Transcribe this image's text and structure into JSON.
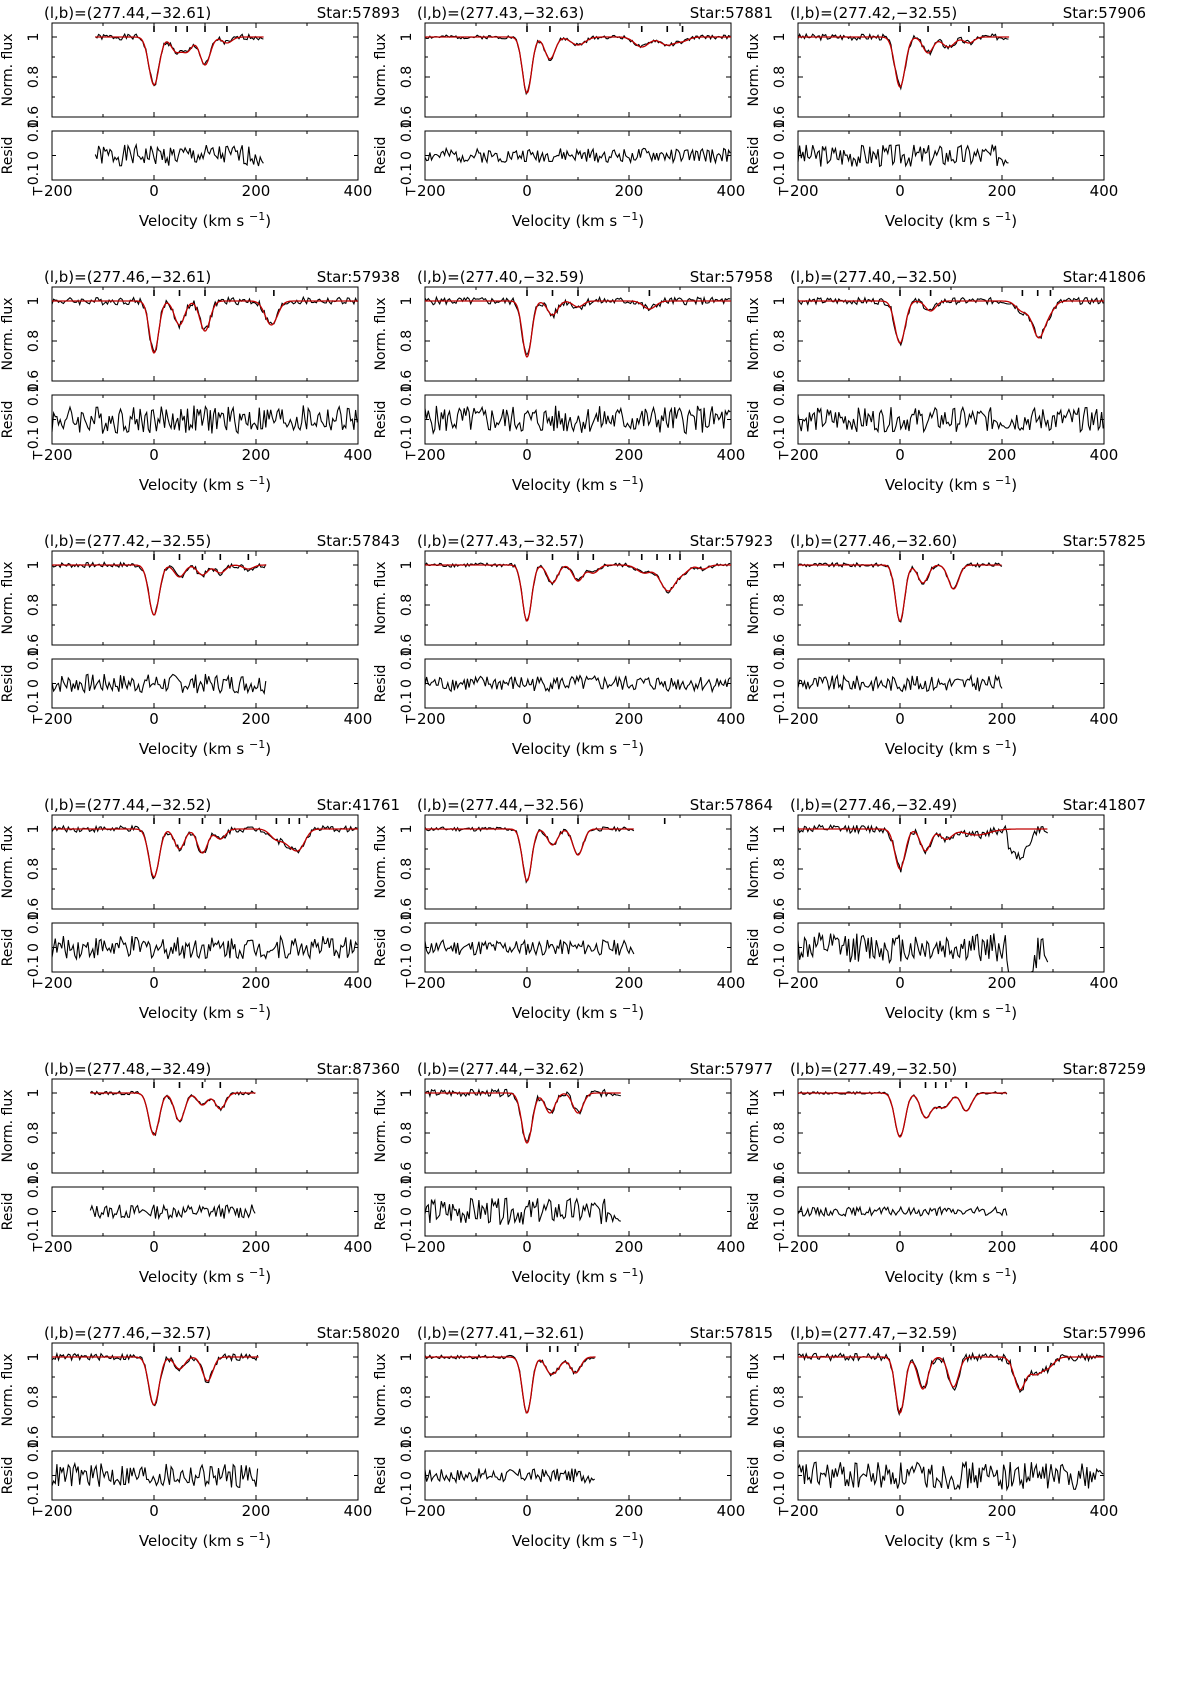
{
  "chart_data": [
    {
      "type": "line",
      "coord": "(l,b)=(277.44,−32.61)",
      "star": "Star:57893",
      "v_range": [
        -115,
        215
      ],
      "model_range": [
        -115,
        215
      ],
      "components": [
        0,
        43,
        65,
        100,
        143
      ],
      "lines": [
        {
          "v": 0,
          "d": 0.24,
          "w": 10
        },
        {
          "v": 43,
          "d": 0.07,
          "w": 10
        },
        {
          "v": 65,
          "d": 0.07,
          "w": 10
        },
        {
          "v": 100,
          "d": 0.14,
          "w": 10
        },
        {
          "v": 143,
          "d": 0.03,
          "w": 10
        }
      ],
      "noise": 0.012,
      "resid_noise": 0.012,
      "seed": 1
    },
    {
      "type": "line",
      "coord": "(l,b)=(277.43,−32.63)",
      "star": "Star:57881",
      "v_range": [
        -200,
        400
      ],
      "model_range": [
        -200,
        400
      ],
      "components": [
        0,
        45,
        100,
        225,
        275,
        305
      ],
      "lines": [
        {
          "v": 0,
          "d": 0.28,
          "w": 9
        },
        {
          "v": 45,
          "d": 0.11,
          "w": 10
        },
        {
          "v": 100,
          "d": 0.04,
          "w": 14
        },
        {
          "v": 225,
          "d": 0.05,
          "w": 14
        },
        {
          "v": 275,
          "d": 0.04,
          "w": 14
        },
        {
          "v": 305,
          "d": 0.02,
          "w": 12
        }
      ],
      "noise": 0.008,
      "resid_noise": 0.008,
      "seed": 2
    },
    {
      "type": "line",
      "coord": "(l,b)=(277.42,−32.55)",
      "star": "Star:57906",
      "v_range": [
        -200,
        215
      ],
      "model_range": [
        -200,
        215
      ],
      "components": [
        0,
        55,
        135
      ],
      "lines": [
        {
          "v": 0,
          "d": 0.25,
          "w": 10
        },
        {
          "v": 55,
          "d": 0.08,
          "w": 10
        },
        {
          "v": 95,
          "d": 0.05,
          "w": 12
        },
        {
          "v": 135,
          "d": 0.03,
          "w": 10
        }
      ],
      "noise": 0.013,
      "resid_noise": 0.013,
      "seed": 3
    },
    {
      "type": "line",
      "coord": "(l,b)=(277.46,−32.61)",
      "star": "Star:57938",
      "v_range": [
        -200,
        400
      ],
      "model_range": [
        -200,
        400
      ],
      "components": [
        0,
        50,
        100,
        235
      ],
      "lines": [
        {
          "v": 0,
          "d": 0.26,
          "w": 9
        },
        {
          "v": 50,
          "d": 0.12,
          "w": 10
        },
        {
          "v": 100,
          "d": 0.15,
          "w": 10
        },
        {
          "v": 230,
          "d": 0.12,
          "w": 12
        }
      ],
      "noise": 0.016,
      "resid_noise": 0.016,
      "seed": 4
    },
    {
      "type": "line",
      "coord": "(l,b)=(277.40,−32.59)",
      "star": "Star:57958",
      "v_range": [
        -200,
        400
      ],
      "model_range": [
        -200,
        400
      ],
      "components": [
        0,
        50,
        100,
        240
      ],
      "lines": [
        {
          "v": 0,
          "d": 0.28,
          "w": 9
        },
        {
          "v": 50,
          "d": 0.07,
          "w": 10
        },
        {
          "v": 100,
          "d": 0.03,
          "w": 10
        },
        {
          "v": 240,
          "d": 0.04,
          "w": 12
        }
      ],
      "noise": 0.016,
      "resid_noise": 0.016,
      "seed": 5
    },
    {
      "type": "line",
      "coord": "(l,b)=(277.40,−32.50)",
      "star": "Star:41806",
      "v_range": [
        -200,
        400
      ],
      "model_range": [
        -200,
        400
      ],
      "components": [
        0,
        60,
        240,
        270,
        295
      ],
      "lines": [
        {
          "v": 0,
          "d": 0.21,
          "w": 10
        },
        {
          "v": 60,
          "d": 0.05,
          "w": 10
        },
        {
          "v": 240,
          "d": 0.05,
          "w": 12
        },
        {
          "v": 272,
          "d": 0.18,
          "w": 12
        },
        {
          "v": 295,
          "d": 0.04,
          "w": 10
        }
      ],
      "noise": 0.014,
      "resid_noise": 0.014,
      "seed": 6
    },
    {
      "type": "line",
      "coord": "(l,b)=(277.42,−32.55)",
      "star": "Star:57843",
      "v_range": [
        -200,
        220
      ],
      "model_range": [
        -200,
        220
      ],
      "components": [
        0,
        50,
        95,
        130,
        185
      ],
      "lines": [
        {
          "v": 0,
          "d": 0.25,
          "w": 10
        },
        {
          "v": 50,
          "d": 0.06,
          "w": 10
        },
        {
          "v": 95,
          "d": 0.05,
          "w": 10
        },
        {
          "v": 130,
          "d": 0.04,
          "w": 10
        },
        {
          "v": 185,
          "d": 0.02,
          "w": 10
        }
      ],
      "noise": 0.011,
      "resid_noise": 0.011,
      "seed": 7
    },
    {
      "type": "line",
      "coord": "(l,b)=(277.43,−32.57)",
      "star": "Star:57923",
      "v_range": [
        -200,
        400
      ],
      "model_range": [
        -200,
        400
      ],
      "components": [
        0,
        50,
        100,
        130,
        225,
        255,
        280,
        300,
        345
      ],
      "lines": [
        {
          "v": 0,
          "d": 0.28,
          "w": 9
        },
        {
          "v": 50,
          "d": 0.09,
          "w": 10
        },
        {
          "v": 100,
          "d": 0.08,
          "w": 10
        },
        {
          "v": 130,
          "d": 0.04,
          "w": 10
        },
        {
          "v": 230,
          "d": 0.04,
          "w": 14
        },
        {
          "v": 265,
          "d": 0.05,
          "w": 12
        },
        {
          "v": 280,
          "d": 0.1,
          "w": 12
        },
        {
          "v": 305,
          "d": 0.04,
          "w": 12
        },
        {
          "v": 345,
          "d": 0.02,
          "w": 10
        }
      ],
      "noise": 0.009,
      "resid_noise": 0.009,
      "seed": 8
    },
    {
      "type": "line",
      "coord": "(l,b)=(277.46,−32.60)",
      "star": "Star:57825",
      "v_range": [
        -200,
        200
      ],
      "model_range": [
        -200,
        200
      ],
      "components": [
        0,
        45,
        105
      ],
      "lines": [
        {
          "v": 0,
          "d": 0.28,
          "w": 9
        },
        {
          "v": 45,
          "d": 0.09,
          "w": 10
        },
        {
          "v": 105,
          "d": 0.12,
          "w": 10
        }
      ],
      "noise": 0.009,
      "resid_noise": 0.009,
      "seed": 9
    },
    {
      "type": "line",
      "coord": "(l,b)=(277.44,−32.52)",
      "star": "Star:41761",
      "v_range": [
        -200,
        400
      ],
      "model_range": [
        -200,
        400
      ],
      "components": [
        0,
        50,
        95,
        130,
        240,
        265,
        285
      ],
      "lines": [
        {
          "v": 0,
          "d": 0.24,
          "w": 10
        },
        {
          "v": 50,
          "d": 0.1,
          "w": 10
        },
        {
          "v": 95,
          "d": 0.12,
          "w": 10
        },
        {
          "v": 130,
          "d": 0.05,
          "w": 10
        },
        {
          "v": 240,
          "d": 0.05,
          "w": 12
        },
        {
          "v": 265,
          "d": 0.06,
          "w": 12
        },
        {
          "v": 285,
          "d": 0.09,
          "w": 12
        }
      ],
      "noise": 0.013,
      "resid_noise": 0.013,
      "seed": 10
    },
    {
      "type": "line",
      "coord": "(l,b)=(277.44,−32.56)",
      "star": "Star:57864",
      "v_range": [
        -200,
        210
      ],
      "model_range": [
        -200,
        210
      ],
      "components": [
        0,
        50,
        100,
        270
      ],
      "lines": [
        {
          "v": 0,
          "d": 0.26,
          "w": 9
        },
        {
          "v": 50,
          "d": 0.08,
          "w": 10
        },
        {
          "v": 100,
          "d": 0.13,
          "w": 10
        }
      ],
      "noise": 0.009,
      "resid_noise": 0.009,
      "seed": 11
    },
    {
      "type": "line",
      "coord": "(l,b)=(277.46,−32.49)",
      "star": "Star:41807",
      "v_range": [
        -200,
        290
      ],
      "model_range": [
        -200,
        290
      ],
      "components": [
        0,
        50,
        90
      ],
      "lines": [
        {
          "v": 0,
          "d": 0.2,
          "w": 10
        },
        {
          "v": 50,
          "d": 0.11,
          "w": 10
        },
        {
          "v": 90,
          "d": 0.05,
          "w": 12
        },
        {
          "v": 150,
          "d": 0.03,
          "w": 25
        }
      ],
      "noise": 0.017,
      "resid_noise": 0.017,
      "drop": {
        "from": 210,
        "depth": 0.14
      },
      "seed": 12
    },
    {
      "type": "line",
      "coord": "(l,b)=(277.48,−32.49)",
      "star": "Star:87360",
      "v_range": [
        -125,
        200
      ],
      "model_range": [
        -125,
        200
      ],
      "components": [
        0,
        50,
        95,
        130
      ],
      "lines": [
        {
          "v": 0,
          "d": 0.21,
          "w": 10
        },
        {
          "v": 50,
          "d": 0.14,
          "w": 10
        },
        {
          "v": 95,
          "d": 0.06,
          "w": 10
        },
        {
          "v": 130,
          "d": 0.08,
          "w": 10
        }
      ],
      "noise": 0.008,
      "resid_noise": 0.008,
      "seed": 13
    },
    {
      "type": "line",
      "coord": "(l,b)=(277.44,−32.62)",
      "star": "Star:57977",
      "v_range": [
        -200,
        185
      ],
      "model_range": [
        -200,
        185
      ],
      "components": [
        0,
        45,
        100
      ],
      "lines": [
        {
          "v": 0,
          "d": 0.25,
          "w": 10
        },
        {
          "v": 45,
          "d": 0.1,
          "w": 10
        },
        {
          "v": 100,
          "d": 0.1,
          "w": 10
        }
      ],
      "noise": 0.015,
      "resid_noise": 0.015,
      "seed": 14
    },
    {
      "type": "line",
      "coord": "(l,b)=(277.49,−32.50)",
      "star": "Star:87259",
      "v_range": [
        -200,
        210
      ],
      "model_range": [
        -200,
        210
      ],
      "components": [
        0,
        50,
        70,
        90,
        130
      ],
      "lines": [
        {
          "v": 0,
          "d": 0.22,
          "w": 10
        },
        {
          "v": 50,
          "d": 0.12,
          "w": 10
        },
        {
          "v": 72,
          "d": 0.05,
          "w": 10
        },
        {
          "v": 90,
          "d": 0.06,
          "w": 10
        },
        {
          "v": 130,
          "d": 0.09,
          "w": 10
        }
      ],
      "noise": 0.005,
      "resid_noise": 0.005,
      "seed": 15
    },
    {
      "type": "line",
      "coord": "(l,b)=(277.46,−32.57)",
      "star": "Star:58020",
      "v_range": [
        -200,
        205
      ],
      "model_range": [
        -200,
        205
      ],
      "components": [
        0,
        50,
        105
      ],
      "lines": [
        {
          "v": 0,
          "d": 0.24,
          "w": 10
        },
        {
          "v": 50,
          "d": 0.06,
          "w": 10
        },
        {
          "v": 105,
          "d": 0.12,
          "w": 10
        }
      ],
      "noise": 0.014,
      "resid_noise": 0.014,
      "seed": 16
    },
    {
      "type": "line",
      "coord": "(l,b)=(277.41,−32.61)",
      "star": "Star:57815",
      "v_range": [
        -200,
        135
      ],
      "model_range": [
        -200,
        135
      ],
      "components": [
        0,
        45,
        60,
        95
      ],
      "lines": [
        {
          "v": 0,
          "d": 0.28,
          "w": 9
        },
        {
          "v": 45,
          "d": 0.07,
          "w": 10
        },
        {
          "v": 60,
          "d": 0.04,
          "w": 10
        },
        {
          "v": 95,
          "d": 0.08,
          "w": 10
        }
      ],
      "noise": 0.008,
      "resid_noise": 0.008,
      "seed": 17
    },
    {
      "type": "line",
      "coord": "(l,b)=(277.47,−32.59)",
      "star": "Star:57996",
      "v_range": [
        -200,
        400
      ],
      "model_range": [
        -200,
        400
      ],
      "components": [
        0,
        45,
        105,
        235,
        265,
        290
      ],
      "lines": [
        {
          "v": 0,
          "d": 0.28,
          "w": 9
        },
        {
          "v": 45,
          "d": 0.16,
          "w": 10
        },
        {
          "v": 105,
          "d": 0.15,
          "w": 10
        },
        {
          "v": 235,
          "d": 0.16,
          "w": 11
        },
        {
          "v": 265,
          "d": 0.08,
          "w": 12
        },
        {
          "v": 290,
          "d": 0.05,
          "w": 12
        }
      ],
      "noise": 0.016,
      "resid_noise": 0.016,
      "seed": 18
    }
  ],
  "axes": {
    "xlabel": "Velocity (km s",
    "xlabel_sup": "−1",
    "xlabel_close": ")",
    "xlim": [
      -200,
      400
    ],
    "xticks": [
      "−200",
      "0",
      "200",
      "400"
    ],
    "ylabel_top": "Norm. flux",
    "ylim_top": [
      0.6,
      1.07
    ],
    "yticks_top": [
      "0.6",
      "0.8",
      "1"
    ],
    "ylabel_bottom": "Resid",
    "yticks_bottom": [
      "−0.1",
      "0",
      "0.1"
    ]
  },
  "colors": {
    "observed": "#000000",
    "model": "#c00000"
  }
}
